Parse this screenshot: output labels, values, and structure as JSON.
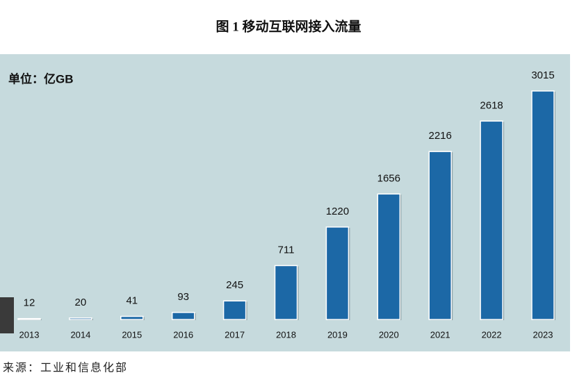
{
  "chart_data": {
    "type": "bar",
    "title": "图 1  移动互联网接入流量",
    "unit_label": "单位：亿GB",
    "source": "来源：工业和信息化部",
    "categories": [
      "2013",
      "2014",
      "2015",
      "2016",
      "2017",
      "2018",
      "2019",
      "2020",
      "2021",
      "2022",
      "2023"
    ],
    "values": [
      12,
      20,
      41,
      93,
      245,
      711,
      1220,
      1656,
      2216,
      2618,
      3015
    ],
    "color": "#1c68a6",
    "background": "#c6dadd"
  }
}
